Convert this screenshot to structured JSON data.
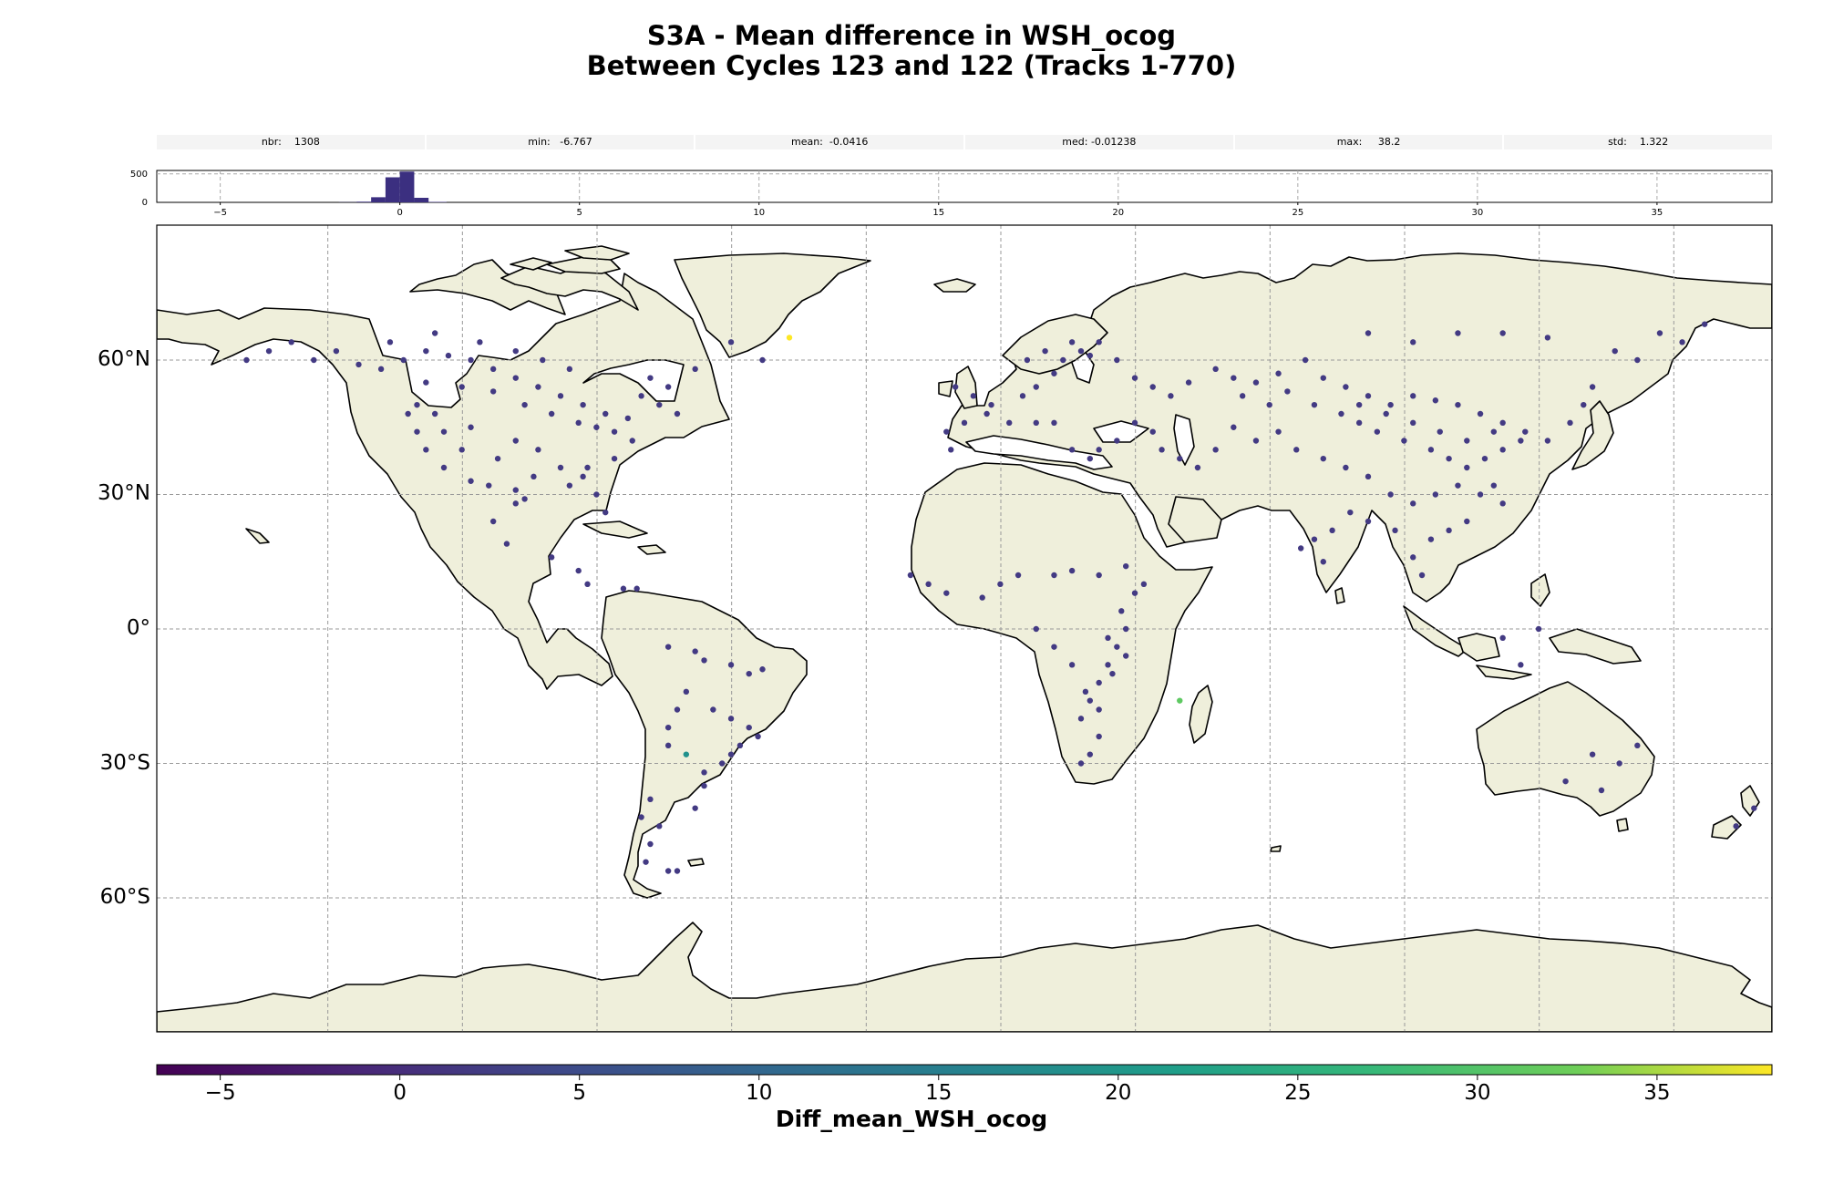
{
  "title_line1": "S3A - Mean difference in WSH_ocog",
  "title_line2": "Between Cycles 123 and 122 (Tracks 1-770)",
  "stats": [
    {
      "label": "nbr:",
      "value": "1308"
    },
    {
      "label": "min:",
      "value": "-6.767"
    },
    {
      "label": "mean:",
      "value": "-0.0416"
    },
    {
      "label": "med:",
      "value": "-0.01238"
    },
    {
      "label": "max:",
      "value": "38.2"
    },
    {
      "label": "std:",
      "value": "1.322"
    }
  ],
  "histogram": {
    "y_ticks": [
      "500",
      "0"
    ],
    "x_ticks": [
      "−5",
      "0",
      "5",
      "10",
      "15",
      "20",
      "25",
      "30",
      "35"
    ],
    "bar_color": "#3b2f80",
    "bins": [
      {
        "x0": -1.7,
        "x1": -1.2,
        "count": 3
      },
      {
        "x0": -1.2,
        "x1": -0.8,
        "count": 12
      },
      {
        "x0": -0.8,
        "x1": -0.4,
        "count": 90
      },
      {
        "x0": -0.4,
        "x1": 0.0,
        "count": 440
      },
      {
        "x0": 0.0,
        "x1": 0.4,
        "count": 540
      },
      {
        "x0": 0.4,
        "x1": 0.8,
        "count": 80
      },
      {
        "x0": 0.8,
        "x1": 1.3,
        "count": 8
      }
    ],
    "x_range": [
      -6.767,
      38.2
    ],
    "y_max": 560
  },
  "map": {
    "lat_labels": [
      "60°N",
      "30°N",
      "0°",
      "30°S",
      "60°S"
    ],
    "land_color": "#efefdb",
    "coast_color": "#000000",
    "point_color": "#433a83"
  },
  "colorbar": {
    "label": "Diff_mean_WSH_ocog",
    "ticks": [
      "−5",
      "0",
      "5",
      "10",
      "15",
      "20",
      "25",
      "30",
      "35"
    ],
    "range": [
      -6.767,
      38.2
    ],
    "colormap": "viridis"
  },
  "chart_data": {
    "type": "scatter",
    "title": "S3A - Mean difference in WSH_ocog\nBetween Cycles 123 and 122 (Tracks 1-770)",
    "xlabel": "",
    "ylabel": "",
    "color_label": "Diff_mean_WSH_ocog",
    "color_range": [
      -6.767,
      38.2
    ],
    "points": [
      [
        -130,
        58
      ],
      [
        -125,
        60
      ],
      [
        -120,
        62
      ],
      [
        -115,
        61
      ],
      [
        -110,
        60
      ],
      [
        -105,
        58
      ],
      [
        -100,
        56
      ],
      [
        -95,
        54
      ],
      [
        -90,
        52
      ],
      [
        -85,
        50
      ],
      [
        -80,
        48
      ],
      [
        -75,
        47
      ],
      [
        -120,
        55
      ],
      [
        -112,
        54
      ],
      [
        -105,
        53
      ],
      [
        -98,
        50
      ],
      [
        -92,
        48
      ],
      [
        -86,
        46
      ],
      [
        -82,
        45
      ],
      [
        -78,
        44
      ],
      [
        -128,
        64
      ],
      [
        -118,
        66
      ],
      [
        -108,
        64
      ],
      [
        -100,
        62
      ],
      [
        -94,
        60
      ],
      [
        -88,
        58
      ],
      [
        -72,
        52
      ],
      [
        -70,
        56
      ],
      [
        -68,
        50
      ],
      [
        -66,
        54
      ],
      [
        -140,
        62
      ],
      [
        -150,
        64
      ],
      [
        -155,
        62
      ],
      [
        -160,
        60
      ],
      [
        -145,
        60
      ],
      [
        -135,
        59
      ],
      [
        -122,
        50
      ],
      [
        -118,
        48
      ],
      [
        -110,
        45
      ],
      [
        -100,
        42
      ],
      [
        -95,
        40
      ],
      [
        -90,
        36
      ],
      [
        -85,
        34
      ],
      [
        -82,
        30
      ],
      [
        -80,
        26
      ],
      [
        -100,
        28
      ],
      [
        -105,
        24
      ],
      [
        -102,
        19
      ],
      [
        -92,
        16
      ],
      [
        -86,
        13
      ],
      [
        -84,
        10
      ],
      [
        -76,
        9
      ],
      [
        -73,
        9
      ],
      [
        -66,
        -4
      ],
      [
        -60,
        -5
      ],
      [
        -58,
        -7
      ],
      [
        -52,
        -8
      ],
      [
        -48,
        -10
      ],
      [
        -45,
        -9
      ],
      [
        -62,
        -14
      ],
      [
        -56,
        -18
      ],
      [
        -52,
        -20
      ],
      [
        -48,
        -22
      ],
      [
        -46,
        -24
      ],
      [
        -52,
        -28
      ],
      [
        -58,
        -32
      ],
      [
        -60,
        -40
      ],
      [
        -68,
        -44
      ],
      [
        -70,
        -48
      ],
      [
        -71,
        -52
      ],
      [
        -72,
        -42
      ],
      [
        -70,
        -38
      ],
      [
        -66,
        -54
      ],
      [
        -64,
        -54
      ],
      [
        -66,
        -26
      ],
      [
        -64,
        -18
      ],
      [
        -66,
        -22
      ],
      [
        -50,
        -26
      ],
      [
        -54,
        -30
      ],
      [
        -58,
        -35
      ],
      [
        13,
        52
      ],
      [
        16,
        54
      ],
      [
        20,
        57
      ],
      [
        22,
        60
      ],
      [
        26,
        62
      ],
      [
        28,
        61
      ],
      [
        24,
        64
      ],
      [
        18,
        62
      ],
      [
        14,
        60
      ],
      [
        30,
        64
      ],
      [
        34,
        60
      ],
      [
        38,
        56
      ],
      [
        42,
        54
      ],
      [
        46,
        52
      ],
      [
        50,
        55
      ],
      [
        56,
        58
      ],
      [
        60,
        56
      ],
      [
        65,
        55
      ],
      [
        70,
        57
      ],
      [
        76,
        60
      ],
      [
        80,
        56
      ],
      [
        85,
        54
      ],
      [
        90,
        52
      ],
      [
        95,
        50
      ],
      [
        100,
        52
      ],
      [
        105,
        51
      ],
      [
        110,
        50
      ],
      [
        115,
        48
      ],
      [
        120,
        46
      ],
      [
        125,
        44
      ],
      [
        130,
        42
      ],
      [
        135,
        46
      ],
      [
        138,
        50
      ],
      [
        140,
        54
      ],
      [
        60,
        45
      ],
      [
        65,
        42
      ],
      [
        70,
        44
      ],
      [
        74,
        40
      ],
      [
        80,
        38
      ],
      [
        85,
        36
      ],
      [
        90,
        34
      ],
      [
        95,
        30
      ],
      [
        100,
        28
      ],
      [
        105,
        30
      ],
      [
        110,
        32
      ],
      [
        115,
        30
      ],
      [
        118,
        32
      ],
      [
        120,
        28
      ],
      [
        112,
        24
      ],
      [
        108,
        22
      ],
      [
        104,
        20
      ],
      [
        100,
        16
      ],
      [
        96,
        22
      ],
      [
        90,
        24
      ],
      [
        86,
        26
      ],
      [
        82,
        22
      ],
      [
        78,
        20
      ],
      [
        75,
        18
      ],
      [
        80,
        15
      ],
      [
        102,
        12
      ],
      [
        36,
        0
      ],
      [
        34,
        -4
      ],
      [
        32,
        -8
      ],
      [
        30,
        -12
      ],
      [
        28,
        -16
      ],
      [
        26,
        -20
      ],
      [
        30,
        -24
      ],
      [
        28,
        -28
      ],
      [
        26,
        -30
      ],
      [
        32,
        -2
      ],
      [
        35,
        4
      ],
      [
        38,
        8
      ],
      [
        40,
        10
      ],
      [
        36,
        14
      ],
      [
        30,
        12
      ],
      [
        24,
        13
      ],
      [
        20,
        12
      ],
      [
        12,
        12
      ],
      [
        8,
        10
      ],
      [
        4,
        7
      ],
      [
        -4,
        8
      ],
      [
        -8,
        10
      ],
      [
        -12,
        12
      ],
      [
        16,
        0
      ],
      [
        20,
        -4
      ],
      [
        24,
        -8
      ],
      [
        27,
        -14
      ],
      [
        30,
        -18
      ],
      [
        33,
        -10
      ],
      [
        36,
        -6
      ],
      [
        44,
        40
      ],
      [
        48,
        38
      ],
      [
        52,
        36
      ],
      [
        56,
        40
      ],
      [
        42,
        44
      ],
      [
        38,
        46
      ],
      [
        34,
        42
      ],
      [
        30,
        40
      ],
      [
        28,
        38
      ],
      [
        24,
        40
      ],
      [
        20,
        46
      ],
      [
        16,
        46
      ],
      [
        10,
        46
      ],
      [
        5,
        48
      ],
      [
        0,
        46
      ],
      [
        -4,
        44
      ],
      [
        -3,
        40
      ],
      [
        6,
        50
      ],
      [
        2,
        52
      ],
      [
        -2,
        54
      ],
      [
        150,
        -26
      ],
      [
        146,
        -30
      ],
      [
        142,
        -36
      ],
      [
        140,
        -28
      ],
      [
        134,
        -34
      ],
      [
        176,
        -40
      ],
      [
        172,
        -44
      ],
      [
        124,
        -8
      ],
      [
        120,
        -2
      ],
      [
        128,
        0
      ],
      [
        145,
        62
      ],
      [
        150,
        60
      ],
      [
        155,
        66
      ],
      [
        160,
        64
      ],
      [
        165,
        68
      ],
      [
        130,
        65
      ],
      [
        120,
        66
      ],
      [
        110,
        66
      ],
      [
        100,
        64
      ],
      [
        90,
        66
      ],
      [
        -45,
        60
      ],
      [
        -52,
        64
      ],
      [
        -60,
        58
      ],
      [
        -64,
        48
      ],
      [
        -74,
        42
      ],
      [
        -78,
        38
      ],
      [
        -84,
        36
      ],
      [
        -88,
        32
      ],
      [
        -96,
        34
      ],
      [
        -104,
        38
      ],
      [
        -112,
        40
      ],
      [
        -116,
        44
      ],
      [
        -122,
        44
      ],
      [
        -124,
        48
      ],
      [
        -120,
        40
      ],
      [
        -116,
        36
      ],
      [
        -110,
        33
      ],
      [
        -106,
        32
      ],
      [
        -100,
        31
      ],
      [
        -98,
        29
      ],
      [
        62,
        52
      ],
      [
        68,
        50
      ],
      [
        72,
        53
      ],
      [
        78,
        50
      ],
      [
        84,
        48
      ],
      [
        88,
        46
      ],
      [
        92,
        44
      ],
      [
        98,
        42
      ],
      [
        104,
        40
      ],
      [
        108,
        38
      ],
      [
        112,
        36
      ],
      [
        116,
        38
      ],
      [
        120,
        40
      ],
      [
        124,
        42
      ],
      [
        118,
        44
      ],
      [
        112,
        42
      ],
      [
        106,
        44
      ],
      [
        100,
        46
      ],
      [
        94,
        48
      ],
      [
        88,
        50
      ]
    ],
    "highlight_points": [
      {
        "lon": -39,
        "lat": 65,
        "value": 38.2
      },
      {
        "lon": -62,
        "lat": -28,
        "value": 10
      },
      {
        "lon": 48,
        "lat": -16,
        "value": 30
      }
    ]
  }
}
